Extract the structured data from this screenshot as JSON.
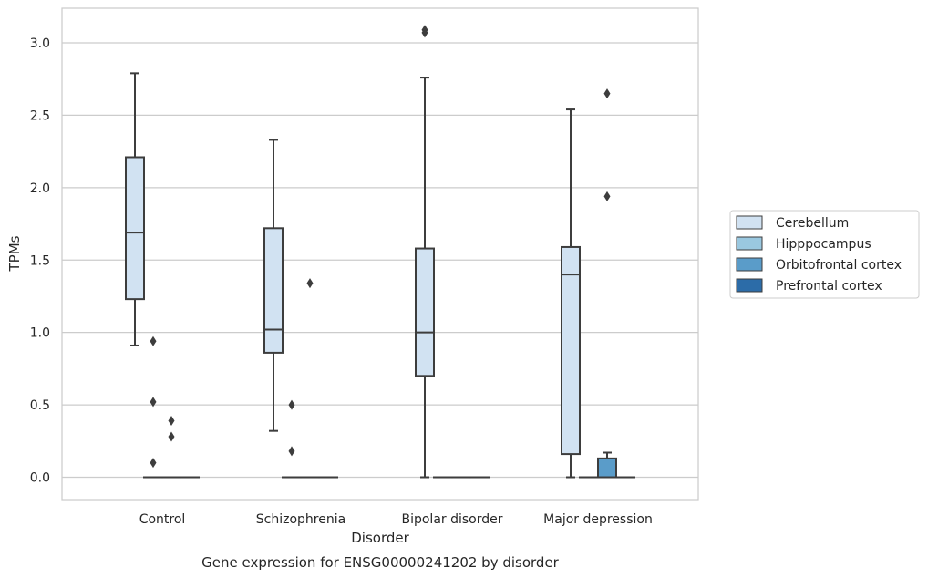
{
  "chart_data": {
    "type": "box",
    "caption": "Gene expression for ENSG00000241202 by disorder",
    "xlabel": "Disorder",
    "ylabel": "TPMs",
    "ylim": [
      -0.15,
      3.25
    ],
    "yticks": [
      0.0,
      0.5,
      1.0,
      1.5,
      2.0,
      2.5,
      3.0
    ],
    "ytick_labels": [
      "0.0",
      "0.5",
      "1.0",
      "1.5",
      "2.0",
      "2.5",
      "3.0"
    ],
    "grid": "horizontal",
    "legend_position": "right",
    "categories": [
      "Control",
      "Schizophrenia",
      "Bipolar disorder",
      "Major depression"
    ],
    "series": [
      {
        "name": "Cerebellum",
        "color": "#d1e2f2",
        "boxes": [
          {
            "q1": 1.23,
            "median": 1.69,
            "q3": 2.21,
            "whislo": 0.91,
            "whishi": 2.79,
            "fliers": []
          },
          {
            "q1": 0.86,
            "median": 1.02,
            "q3": 1.72,
            "whislo": 0.32,
            "whishi": 2.33,
            "fliers": []
          },
          {
            "q1": 0.7,
            "median": 1.0,
            "q3": 1.58,
            "whislo": 0.0,
            "whishi": 2.76,
            "fliers": [
              3.07,
              3.09
            ]
          },
          {
            "q1": 0.16,
            "median": 1.4,
            "q3": 1.59,
            "whislo": 0.0,
            "whishi": 2.54,
            "fliers": []
          }
        ]
      },
      {
        "name": "Hipppocampus",
        "color": "#9ac8e0",
        "boxes": [
          {
            "q1": 0.0,
            "median": 0.0,
            "q3": 0.0,
            "whislo": 0.0,
            "whishi": 0.0,
            "fliers": [
              0.94,
              0.52,
              0.1
            ]
          },
          {
            "q1": 0.0,
            "median": 0.0,
            "q3": 0.0,
            "whislo": 0.0,
            "whishi": 0.0,
            "fliers": [
              0.5,
              0.18
            ]
          },
          {
            "q1": 0.0,
            "median": 0.0,
            "q3": 0.0,
            "whislo": 0.0,
            "whishi": 0.0,
            "fliers": []
          },
          {
            "q1": 0.0,
            "median": 0.0,
            "q3": 0.0,
            "whislo": 0.0,
            "whishi": 0.0,
            "fliers": []
          }
        ]
      },
      {
        "name": "Orbitofrontal cortex",
        "color": "#5a9cc9",
        "boxes": [
          {
            "q1": 0.0,
            "median": 0.0,
            "q3": 0.0,
            "whislo": 0.0,
            "whishi": 0.0,
            "fliers": [
              0.39,
              0.28
            ]
          },
          {
            "q1": 0.0,
            "median": 0.0,
            "q3": 0.0,
            "whislo": 0.0,
            "whishi": 0.0,
            "fliers": [
              1.34
            ]
          },
          {
            "q1": 0.0,
            "median": 0.0,
            "q3": 0.0,
            "whislo": 0.0,
            "whishi": 0.0,
            "fliers": []
          },
          {
            "q1": 0.0,
            "median": 0.0,
            "q3": 0.13,
            "whislo": 0.0,
            "whishi": 0.17,
            "fliers": [
              2.65,
              1.94
            ]
          }
        ]
      },
      {
        "name": "Prefrontal cortex",
        "color": "#2c6ca8",
        "boxes": [
          {
            "q1": 0.0,
            "median": 0.0,
            "q3": 0.0,
            "whislo": 0.0,
            "whishi": 0.0,
            "fliers": []
          },
          {
            "q1": 0.0,
            "median": 0.0,
            "q3": 0.0,
            "whislo": 0.0,
            "whishi": 0.0,
            "fliers": []
          },
          {
            "q1": 0.0,
            "median": 0.0,
            "q3": 0.0,
            "whislo": 0.0,
            "whishi": 0.0,
            "fliers": []
          },
          {
            "q1": 0.0,
            "median": 0.0,
            "q3": 0.0,
            "whislo": 0.0,
            "whishi": 0.0,
            "fliers": []
          }
        ]
      }
    ]
  }
}
